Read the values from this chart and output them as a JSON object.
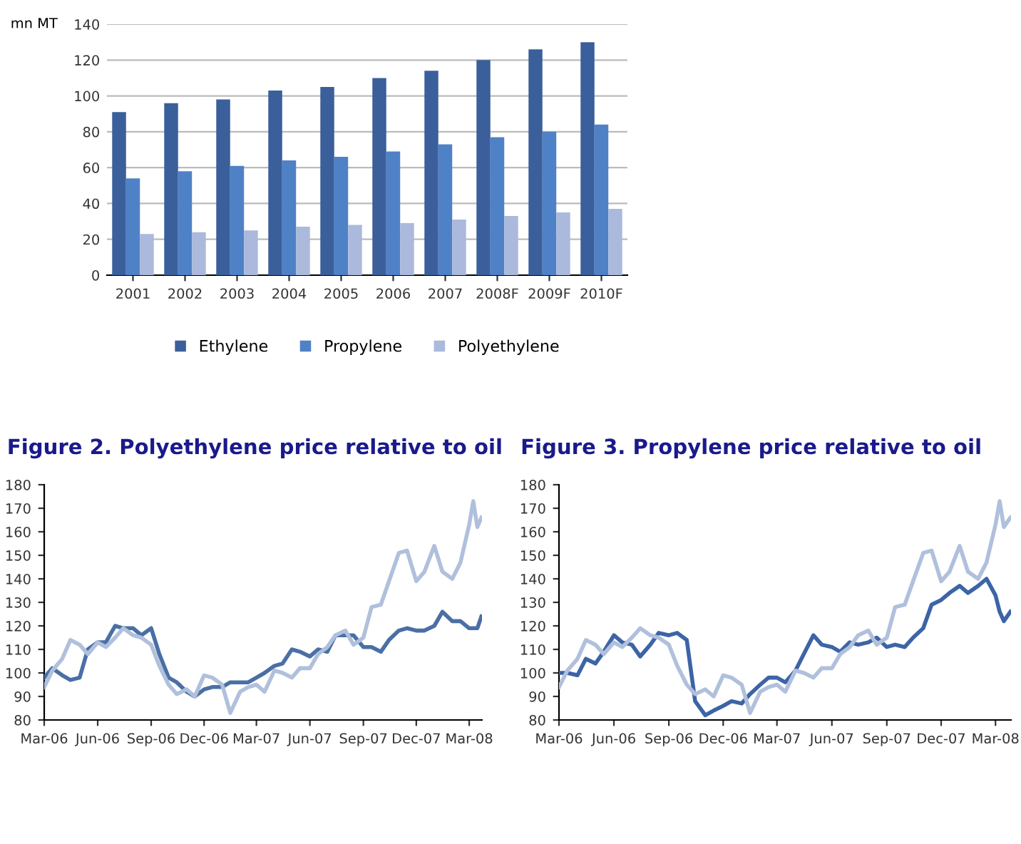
{
  "chart_data": [
    {
      "type": "bar",
      "ylabel": "mn MT",
      "categories": [
        "2001",
        "2002",
        "2003",
        "2004",
        "2005",
        "2006",
        "2007",
        "2008F",
        "2009F",
        "2010F"
      ],
      "series": [
        {
          "name": "Ethylene",
          "color": "#3a5f9a",
          "values": [
            91,
            96,
            98,
            103,
            105,
            110,
            114,
            120,
            126,
            130
          ]
        },
        {
          "name": "Propylene",
          "color": "#4f81c7",
          "values": [
            54,
            58,
            61,
            64,
            66,
            69,
            73,
            77,
            80,
            84
          ]
        },
        {
          "name": "Polyethylene",
          "color": "#aab9dc",
          "values": [
            23,
            24,
            25,
            27,
            28,
            29,
            31,
            33,
            35,
            37
          ]
        }
      ],
      "ylim": [
        0,
        140
      ],
      "yticks": [
        0,
        20,
        40,
        60,
        80,
        100,
        120,
        140
      ],
      "grid": "y",
      "legend": "bottom"
    },
    {
      "type": "line",
      "title": "Figure 2. Polyethylene price relative to oil",
      "x": [
        "2006-03-01",
        "2006-03-15",
        "2006-04-01",
        "2006-04-15",
        "2006-05-01",
        "2006-05-15",
        "2006-06-01",
        "2006-06-15",
        "2006-07-01",
        "2006-07-15",
        "2006-08-01",
        "2006-08-15",
        "2006-09-01",
        "2006-09-15",
        "2006-10-01",
        "2006-10-15",
        "2006-11-01",
        "2006-11-15",
        "2006-12-01",
        "2006-12-15",
        "2007-01-01",
        "2007-01-15",
        "2007-02-01",
        "2007-02-15",
        "2007-03-01",
        "2007-03-15",
        "2007-04-01",
        "2007-04-15",
        "2007-05-01",
        "2007-05-15",
        "2007-06-01",
        "2007-06-15",
        "2007-07-01",
        "2007-07-15",
        "2007-08-01",
        "2007-08-15",
        "2007-09-01",
        "2007-09-15",
        "2007-10-01",
        "2007-10-15",
        "2007-11-01",
        "2007-11-15",
        "2007-12-01",
        "2007-12-15",
        "2008-01-01",
        "2008-01-15",
        "2008-02-01",
        "2008-02-15",
        "2008-03-01",
        "2008-03-08",
        "2008-03-15",
        "2008-03-22"
      ],
      "series": [
        {
          "color": "#4a6fa5",
          "values": [
            98,
            102,
            99,
            97,
            98,
            110,
            113,
            113,
            120,
            119,
            119,
            116,
            119,
            108,
            98,
            96,
            92,
            90,
            93,
            94,
            94,
            96,
            96,
            96,
            98,
            100,
            103,
            104,
            110,
            109,
            107,
            110,
            109,
            116,
            116,
            116,
            111,
            111,
            109,
            114,
            118,
            119,
            118,
            118,
            120,
            126,
            122,
            122,
            119,
            119,
            119,
            124
          ]
        },
        {
          "color": "#b0c0dc",
          "values": [
            94,
            101,
            106,
            114,
            112,
            108,
            113,
            111,
            115,
            119,
            116,
            115,
            112,
            103,
            95,
            91,
            93,
            90,
            99,
            98,
            95,
            83,
            92,
            94,
            95,
            92,
            101,
            100,
            98,
            102,
            102,
            108,
            111,
            116,
            118,
            112,
            115,
            128,
            129,
            139,
            151,
            152,
            139,
            143,
            154,
            143,
            140,
            147,
            163,
            173,
            162,
            166
          ]
        }
      ],
      "xlim": [
        "2006-03-01",
        "2008-03-23"
      ],
      "xticks": [
        {
          "value": "2006-03-01",
          "label": "Mar-06"
        },
        {
          "value": "2006-06-01",
          "label": "Jun-06"
        },
        {
          "value": "2006-09-01",
          "label": "Sep-06"
        },
        {
          "value": "2006-12-01",
          "label": "Dec-06"
        },
        {
          "value": "2007-03-01",
          "label": "Mar-07"
        },
        {
          "value": "2007-06-01",
          "label": "Jun-07"
        },
        {
          "value": "2007-09-01",
          "label": "Sep-07"
        },
        {
          "value": "2007-12-01",
          "label": "Dec-07"
        },
        {
          "value": "2008-03-01",
          "label": "Mar-08"
        }
      ],
      "ylim": [
        80,
        180
      ],
      "yticks": [
        80,
        90,
        100,
        110,
        120,
        130,
        140,
        150,
        160,
        170,
        180
      ],
      "grid": false
    },
    {
      "type": "line",
      "title": "Figure 3. Propylene price relative to oil",
      "x": [
        "2006-03-01",
        "2006-03-15",
        "2006-04-01",
        "2006-04-15",
        "2006-05-01",
        "2006-05-15",
        "2006-06-01",
        "2006-06-15",
        "2006-07-01",
        "2006-07-15",
        "2006-08-01",
        "2006-08-15",
        "2006-09-01",
        "2006-09-15",
        "2006-10-01",
        "2006-10-15",
        "2006-11-01",
        "2006-11-15",
        "2006-12-01",
        "2006-12-15",
        "2007-01-01",
        "2007-01-15",
        "2007-02-01",
        "2007-02-15",
        "2007-03-01",
        "2007-03-15",
        "2007-04-01",
        "2007-04-15",
        "2007-05-01",
        "2007-05-15",
        "2007-06-01",
        "2007-06-15",
        "2007-07-01",
        "2007-07-15",
        "2007-08-01",
        "2007-08-15",
        "2007-09-01",
        "2007-09-15",
        "2007-10-01",
        "2007-10-15",
        "2007-11-01",
        "2007-11-15",
        "2007-12-01",
        "2007-12-15",
        "2008-01-01",
        "2008-01-15",
        "2008-02-01",
        "2008-02-15",
        "2008-03-01",
        "2008-03-08",
        "2008-03-15",
        "2008-03-26"
      ],
      "series": [
        {
          "color": "#3c64a6",
          "values": [
            100,
            100,
            99,
            106,
            104,
            109,
            116,
            113,
            112,
            107,
            112,
            117,
            116,
            117,
            114,
            88,
            82,
            84,
            86,
            88,
            87,
            91,
            95,
            98,
            98,
            96,
            101,
            108,
            116,
            112,
            111,
            109,
            113,
            112,
            113,
            115,
            111,
            112,
            111,
            115,
            119,
            129,
            131,
            134,
            137,
            134,
            137,
            140,
            133,
            126,
            122,
            126
          ]
        },
        {
          "color": "#b0c0dc",
          "values": [
            94,
            101,
            106,
            114,
            112,
            108,
            113,
            111,
            115,
            119,
            116,
            115,
            112,
            103,
            95,
            91,
            93,
            90,
            99,
            98,
            95,
            83,
            92,
            94,
            95,
            92,
            101,
            100,
            98,
            102,
            102,
            108,
            111,
            116,
            118,
            112,
            115,
            128,
            129,
            139,
            151,
            152,
            139,
            143,
            154,
            143,
            140,
            147,
            163,
            173,
            162,
            166
          ]
        }
      ],
      "xlim": [
        "2006-03-01",
        "2008-03-27"
      ],
      "xticks": [
        {
          "value": "2006-03-01",
          "label": "Mar-06"
        },
        {
          "value": "2006-06-01",
          "label": "Jun-06"
        },
        {
          "value": "2006-09-01",
          "label": "Sep-06"
        },
        {
          "value": "2006-12-01",
          "label": "Dec-06"
        },
        {
          "value": "2007-03-01",
          "label": "Mar-07"
        },
        {
          "value": "2007-06-01",
          "label": "Jun-07"
        },
        {
          "value": "2007-09-01",
          "label": "Sep-07"
        },
        {
          "value": "2007-12-01",
          "label": "Dec-07"
        },
        {
          "value": "2008-03-01",
          "label": "Mar-08"
        }
      ],
      "ylim": [
        80,
        180
      ],
      "yticks": [
        80,
        90,
        100,
        110,
        120,
        130,
        140,
        150,
        160,
        170,
        180
      ],
      "grid": false
    }
  ]
}
